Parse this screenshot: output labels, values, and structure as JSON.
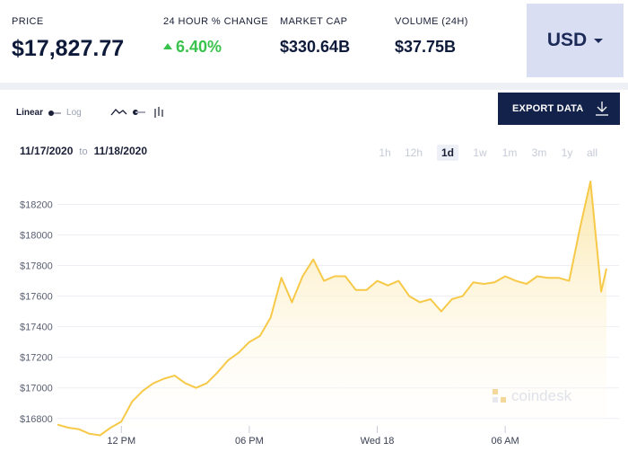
{
  "stats": {
    "price": {
      "label": "PRICE",
      "value": "$17,827.77"
    },
    "change": {
      "label": "24 HOUR % CHANGE",
      "value": "6.40%"
    },
    "market_cap": {
      "label": "MARKET CAP",
      "value": "$330.64B"
    },
    "volume": {
      "label": "VOLUME (24H)",
      "value": "$37.75B"
    }
  },
  "currency": {
    "label": "USD",
    "icon": "caret-down-icon"
  },
  "controls": {
    "scale_linear": "Linear",
    "scale_log": "Log",
    "export_label": "EXPORT DATA",
    "export_icon": "download-icon",
    "date_from": "11/17/2020",
    "date_to_word": "to",
    "date_to": "11/18/2020",
    "ranges": [
      "1h",
      "12h",
      "1d",
      "1w",
      "1m",
      "3m",
      "1y",
      "all"
    ],
    "active_range": "1d"
  },
  "watermark": "coindesk",
  "colors": {
    "line": "#f7c948",
    "fill": "#fdf1c8",
    "accent_green": "#39c24c",
    "navy": "#13224a"
  },
  "chart_data": {
    "type": "area",
    "title": "",
    "xlabel": "",
    "ylabel": "",
    "x_tick_labels": [
      "12 PM",
      "06 PM",
      "Wed 18",
      "06 AM"
    ],
    "y_tick_labels": [
      "$16800",
      "$17000",
      "$17200",
      "$17400",
      "$17600",
      "$17800",
      "$18000",
      "$18200"
    ],
    "ylim": [
      16740,
      18420
    ],
    "x_range": [
      "11/17/2020 09:00",
      "11/18/2020 10:45"
    ],
    "grid": true,
    "legend": "none",
    "series": [
      {
        "x": [
          "11/17/2020 09:00",
          "11/17/2020 09:30",
          "11/17/2020 10:00",
          "11/17/2020 10:30",
          "11/17/2020 11:00",
          "11/17/2020 11:30",
          "11/17/2020 12:00",
          "11/17/2020 12:30",
          "11/17/2020 13:00",
          "11/17/2020 13:30",
          "11/17/2020 14:00",
          "11/17/2020 14:30",
          "11/17/2020 15:00",
          "11/17/2020 15:30",
          "11/17/2020 16:00",
          "11/17/2020 16:30",
          "11/17/2020 17:00",
          "11/17/2020 17:30",
          "11/17/2020 18:00",
          "11/17/2020 18:30",
          "11/17/2020 19:00",
          "11/17/2020 19:30",
          "11/17/2020 20:00",
          "11/17/2020 20:30",
          "11/17/2020 21:00",
          "11/17/2020 21:30",
          "11/17/2020 22:00",
          "11/17/2020 22:30",
          "11/17/2020 23:00",
          "11/17/2020 23:30",
          "11/18/2020 00:00",
          "11/18/2020 00:30",
          "11/18/2020 01:00",
          "11/18/2020 01:30",
          "11/18/2020 02:00",
          "11/18/2020 02:30",
          "11/18/2020 03:00",
          "11/18/2020 03:30",
          "11/18/2020 04:00",
          "11/18/2020 04:30",
          "11/18/2020 05:00",
          "11/18/2020 05:30",
          "11/18/2020 06:00",
          "11/18/2020 06:30",
          "11/18/2020 07:00",
          "11/18/2020 07:30",
          "11/18/2020 08:00",
          "11/18/2020 08:30",
          "11/18/2020 09:00",
          "11/18/2020 09:30",
          "11/18/2020 10:00",
          "11/18/2020 10:30",
          "11/18/2020 10:45"
        ],
        "values": [
          16760,
          16740,
          16730,
          16700,
          16690,
          16740,
          16780,
          16910,
          16980,
          17030,
          17060,
          17080,
          17030,
          17000,
          17030,
          17100,
          17180,
          17230,
          17300,
          17340,
          17460,
          17720,
          17560,
          17730,
          17840,
          17700,
          17730,
          17730,
          17640,
          17640,
          17700,
          17670,
          17700,
          17600,
          17560,
          17580,
          17500,
          17580,
          17600,
          17690,
          17680,
          17690,
          17730,
          17700,
          17680,
          17730,
          17720,
          17720,
          17700,
          18040,
          18350,
          17630,
          17780
        ]
      }
    ]
  }
}
